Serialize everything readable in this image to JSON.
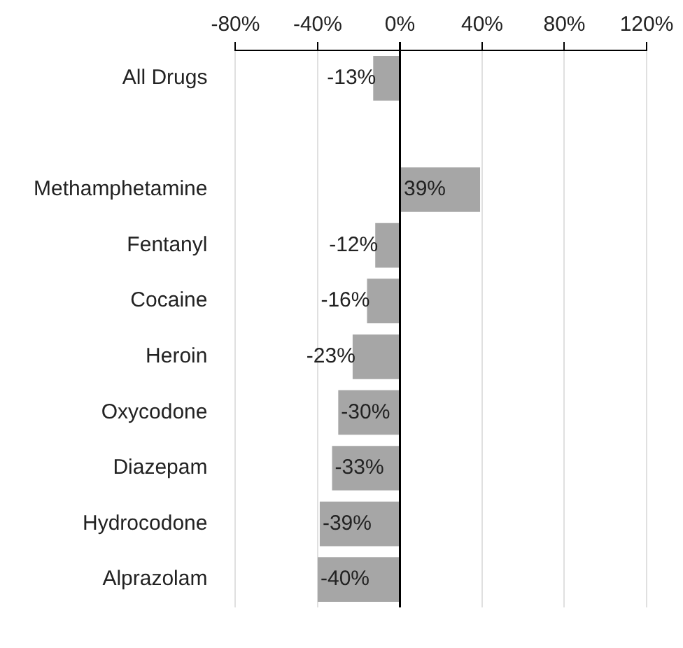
{
  "chart_data": {
    "type": "bar",
    "orientation": "horizontal",
    "categories": [
      "All Drugs",
      null,
      "Methamphetamine",
      "Fentanyl",
      "Cocaine",
      "Heroin",
      "Oxycodone",
      "Diazepam",
      "Hydrocodone",
      "Alprazolam"
    ],
    "values": [
      -13,
      null,
      39,
      -12,
      -16,
      -23,
      -30,
      -33,
      -39,
      -40
    ],
    "value_labels": [
      "-13%",
      null,
      "39%",
      "-12%",
      "-16%",
      "-23%",
      "-30%",
      "-33%",
      "-39%",
      "-40%"
    ],
    "color": "#a6a6a6",
    "xlim": [
      -80,
      120
    ],
    "xticks": [
      {
        "value": -80,
        "label": "-80%"
      },
      {
        "value": -40,
        "label": "-40%"
      },
      {
        "value": 0,
        "label": "0%"
      },
      {
        "value": 40,
        "label": "40%"
      },
      {
        "value": 80,
        "label": "80%"
      },
      {
        "value": 120,
        "label": "120%"
      }
    ],
    "grid": "x",
    "legend": false
  }
}
